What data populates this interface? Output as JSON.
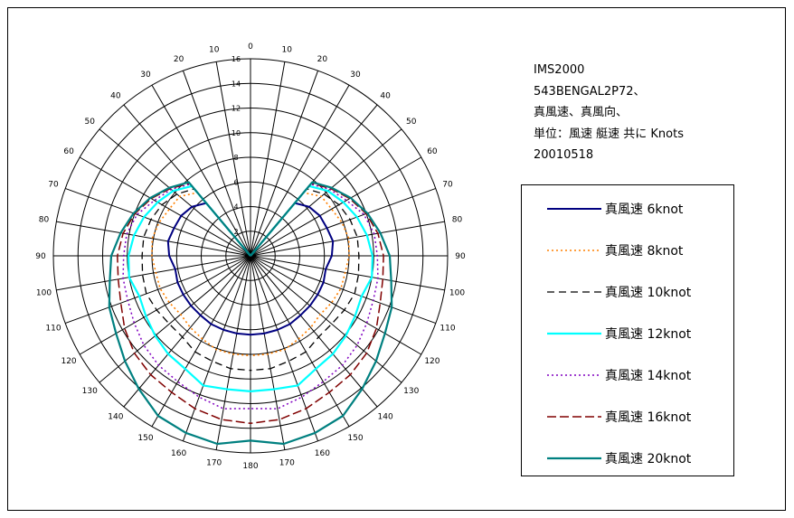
{
  "info": {
    "line1": "IMS2000",
    "line2": "543BENGAL2P72、",
    "line3": "真風速、真風向、",
    "line4": "単位：風速 艇速 共に Knots",
    "line5": "20010518"
  },
  "colors": {
    "s6": "#000080",
    "s8": "#ff8000",
    "s10": "#000000",
    "s12": "#00ffff",
    "s14": "#8000c0",
    "s16": "#800000",
    "s20": "#008080"
  },
  "chart_data": {
    "type": "polar-line",
    "radial_ticks": [
      2,
      4,
      6,
      8,
      10,
      12,
      14,
      16
    ],
    "radial_max": 16,
    "angle_ticks": [
      0,
      10,
      20,
      30,
      40,
      50,
      60,
      70,
      80,
      90,
      100,
      110,
      120,
      130,
      140,
      150,
      160,
      170,
      180
    ],
    "angles": [
      0,
      40,
      50,
      60,
      70,
      80,
      90,
      100,
      110,
      120,
      130,
      140,
      150,
      160,
      170,
      180
    ],
    "series": [
      {
        "name": "真風速  6knot",
        "key": "s6",
        "dash": "solid",
        "values": [
          0,
          5.6,
          6.2,
          6.5,
          6.6,
          6.8,
          6.6,
          6.2,
          6.3,
          6.3,
          6.3,
          6.3,
          6.4,
          6.4,
          6.4,
          6.4
        ]
      },
      {
        "name": "真風速  8knot",
        "key": "s8",
        "dash": "dot",
        "values": [
          0,
          6.7,
          7.5,
          7.6,
          7.9,
          8.1,
          8.0,
          7.8,
          7.8,
          7.6,
          7.4,
          7.6,
          7.8,
          8.1,
          8.1,
          8.1
        ]
      },
      {
        "name": "真風速  10knot",
        "key": "s10",
        "dash": "dash",
        "values": [
          0,
          7.1,
          7.8,
          8.3,
          8.6,
          8.8,
          8.8,
          8.9,
          9.0,
          8.8,
          8.6,
          8.6,
          9.0,
          9.1,
          9.3,
          9.3
        ]
      },
      {
        "name": "真風速  12knot",
        "key": "s12",
        "dash": "solid",
        "values": [
          0,
          7.4,
          8.2,
          8.7,
          9.2,
          9.6,
          9.9,
          10.0,
          9.6,
          9.8,
          10.1,
          10.4,
          10.6,
          11.2,
          11.0,
          11.0
        ]
      },
      {
        "name": "真風速  14knot",
        "key": "s14",
        "dash": "dot",
        "values": [
          0,
          7.6,
          8.4,
          9.0,
          9.8,
          10.2,
          10.3,
          10.5,
          10.6,
          10.9,
          11.3,
          11.6,
          11.8,
          12.2,
          12.6,
          12.4
        ]
      },
      {
        "name": "真風速  16knot",
        "key": "s16",
        "dash": "longdash",
        "values": [
          0,
          7.7,
          8.5,
          9.3,
          10.0,
          10.5,
          10.8,
          10.9,
          11.2,
          11.8,
          12.3,
          12.6,
          12.8,
          13.2,
          13.5,
          13.6
        ]
      },
      {
        "name": "真風速  20knot",
        "key": "s20",
        "dash": "solid",
        "values": [
          0,
          7.8,
          8.6,
          9.4,
          10.1,
          10.7,
          11.3,
          11.6,
          12.2,
          12.6,
          13.3,
          14.1,
          15.0,
          15.3,
          15.5,
          15.0
        ]
      }
    ]
  }
}
